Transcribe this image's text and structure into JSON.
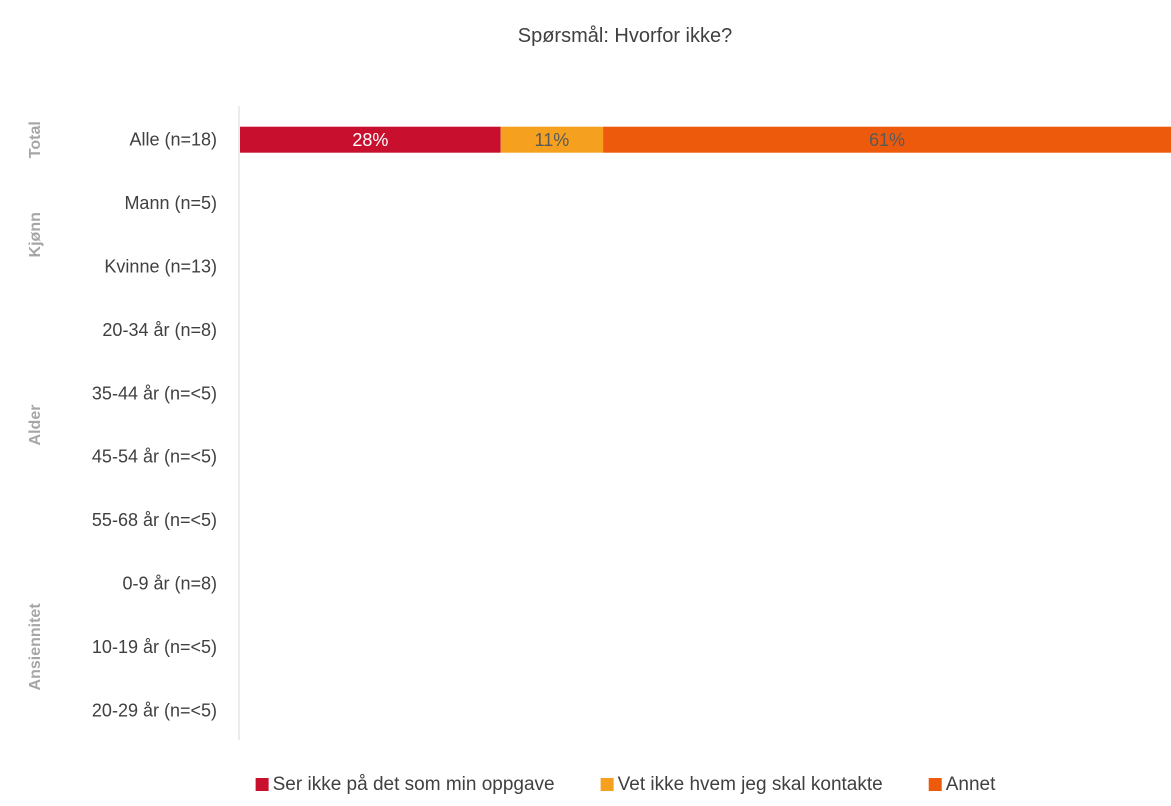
{
  "chart_data": {
    "type": "bar",
    "orientation": "horizontal",
    "stacked": true,
    "percent_stacked": true,
    "title": "Spørsmål: Hvorfor ikke?",
    "xlim": [
      0,
      100
    ],
    "grid": false,
    "legend_position": "bottom",
    "categories": [
      "Alle (n=18)",
      "Mann (n=5)",
      "Kvinne (n=13)",
      "20-34 år (n=8)",
      "35-44 år (n=<5)",
      "45-54 år (n=<5)",
      "55-68 år (n=<5)",
      "0-9 år (n=8)",
      "10-19 år (n=<5)",
      "20-29 år (n=<5)"
    ],
    "groups": [
      {
        "label": "Total",
        "categories": [
          "Alle (n=18)"
        ]
      },
      {
        "label": "Kjønn",
        "categories": [
          "Mann (n=5)",
          "Kvinne (n=13)"
        ]
      },
      {
        "label": "Alder",
        "categories": [
          "20-34 år (n=8)",
          "35-44 år (n=<5)",
          "45-54 år (n=<5)",
          "55-68 år (n=<5)"
        ]
      },
      {
        "label": "Ansiennitet",
        "categories": [
          "0-9 år (n=8)",
          "10-19 år (n=<5)",
          "20-29 år (n=<5)"
        ]
      }
    ],
    "series": [
      {
        "name": "Ser ikke på det som min oppgave",
        "color": "#c8102e",
        "label_color": "#ffffff",
        "values": [
          28,
          null,
          null,
          null,
          null,
          null,
          null,
          null,
          null,
          null
        ],
        "labels": [
          "28%",
          "",
          "",
          "",
          "",
          "",
          "",
          "",
          "",
          ""
        ]
      },
      {
        "name": "Vet ikke hvem jeg skal kontakte",
        "color": "#f5a11f",
        "label_color": "#595959",
        "values": [
          11,
          null,
          null,
          null,
          null,
          null,
          null,
          null,
          null,
          null
        ],
        "labels": [
          "11%",
          "",
          "",
          "",
          "",
          "",
          "",
          "",
          "",
          ""
        ]
      },
      {
        "name": "Annet",
        "color": "#ee5a0c",
        "label_color": "#595959",
        "values": [
          61,
          null,
          null,
          null,
          null,
          null,
          null,
          null,
          null,
          null
        ],
        "labels": [
          "61%",
          "",
          "",
          "",
          "",
          "",
          "",
          "",
          "",
          ""
        ]
      }
    ]
  }
}
